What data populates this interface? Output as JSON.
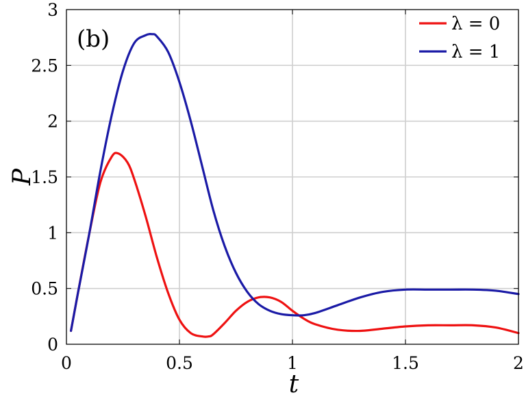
{
  "chart_data": {
    "type": "line",
    "panel_label": "(b)",
    "xlabel": "t",
    "ylabel": "P",
    "xlim": [
      0,
      2
    ],
    "ylim": [
      0,
      3
    ],
    "xticks": [
      0,
      0.5,
      1,
      1.5,
      2
    ],
    "xtick_labels": [
      "0",
      "0.5",
      "1",
      "1.5",
      "2"
    ],
    "yticks": [
      0,
      0.5,
      1,
      1.5,
      2,
      2.5,
      3
    ],
    "ytick_labels": [
      "0",
      "0.5",
      "1",
      "1.5",
      "2",
      "2.5",
      "3"
    ],
    "grid": true,
    "legend_position": "top-right",
    "series": [
      {
        "name": "λ = 0",
        "color": "#ee1111",
        "x": [
          0.02,
          0.05,
          0.1,
          0.15,
          0.2,
          0.23,
          0.27,
          0.3,
          0.35,
          0.4,
          0.45,
          0.5,
          0.55,
          0.6,
          0.63,
          0.65,
          0.7,
          0.75,
          0.8,
          0.85,
          0.9,
          0.95,
          1.0,
          1.05,
          1.1,
          1.2,
          1.3,
          1.4,
          1.5,
          1.6,
          1.7,
          1.8,
          1.9,
          2.0
        ],
        "y": [
          0.12,
          0.45,
          0.98,
          1.45,
          1.68,
          1.71,
          1.63,
          1.48,
          1.15,
          0.78,
          0.46,
          0.22,
          0.1,
          0.07,
          0.07,
          0.09,
          0.19,
          0.3,
          0.38,
          0.42,
          0.42,
          0.38,
          0.3,
          0.23,
          0.18,
          0.13,
          0.12,
          0.14,
          0.16,
          0.17,
          0.17,
          0.17,
          0.15,
          0.1
        ]
      },
      {
        "name": "λ = 1",
        "color": "#1a1aa6",
        "x": [
          0.02,
          0.05,
          0.1,
          0.15,
          0.2,
          0.25,
          0.3,
          0.35,
          0.38,
          0.4,
          0.45,
          0.5,
          0.55,
          0.6,
          0.65,
          0.7,
          0.75,
          0.8,
          0.85,
          0.9,
          0.95,
          1.0,
          1.05,
          1.1,
          1.2,
          1.3,
          1.4,
          1.5,
          1.6,
          1.7,
          1.8,
          1.9,
          2.0
        ],
        "y": [
          0.12,
          0.45,
          0.98,
          1.55,
          2.05,
          2.45,
          2.7,
          2.77,
          2.78,
          2.76,
          2.62,
          2.35,
          2.0,
          1.6,
          1.2,
          0.88,
          0.64,
          0.47,
          0.36,
          0.3,
          0.27,
          0.26,
          0.26,
          0.28,
          0.35,
          0.42,
          0.47,
          0.49,
          0.49,
          0.49,
          0.49,
          0.48,
          0.45
        ]
      }
    ]
  }
}
